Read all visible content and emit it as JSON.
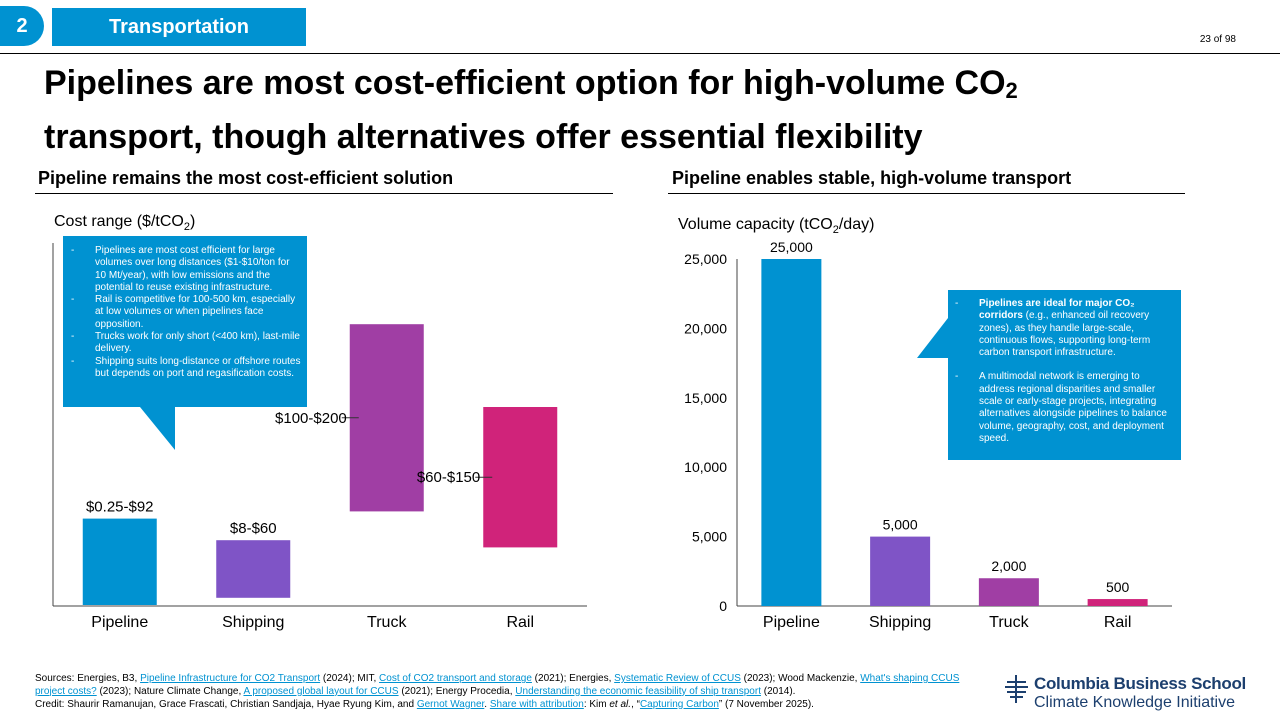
{
  "header": {
    "section_number": "2",
    "section_label": "Transportation",
    "page_indicator": "23 of 98"
  },
  "title": {
    "line1_text": "Pipelines are most cost-efficient option for high-volume CO",
    "line1_sub": "2",
    "line2": "transport, though alternatives offer essential flexibility"
  },
  "left_panel": {
    "heading": "Pipeline remains the most cost-efficient solution",
    "axis_label_main": "Cost range ($/tCO",
    "axis_label_sub": "2",
    "axis_label_end": ")",
    "callout_items": [
      "Pipelines are most cost efficient for large volumes over long distances ($1-$10/ton for 10 Mt/year), with low emissions and the potential to reuse existing infrastructure.",
      "Rail is competitive for 100-500 km, especially at low volumes or when pipelines face opposition.",
      "Trucks work for only short (<400 km), last-mile delivery.",
      "Shipping suits long-distance or offshore routes but depends on port and regasification costs."
    ]
  },
  "right_panel": {
    "heading": "Pipeline enables stable, high-volume transport",
    "axis_label_main": "Volume capacity (tCO",
    "axis_label_sub": "2",
    "axis_label_end": "/day)",
    "callout_item1_bold": "Pipelines are ideal for major CO₂ corridors",
    "callout_item1_rest": " (e.g., enhanced oil recovery zones), as they handle large-scale, continuous flows, supporting long-term carbon transport infrastructure.",
    "callout_item2": "A multimodal network is emerging to address regional disparities and smaller scale or early-stage projects, integrating alternatives alongside pipelines to balance volume, geography, cost, and deployment speed."
  },
  "chart_data": [
    {
      "type": "bar",
      "categories": [
        "Pipeline",
        "Shipping",
        "Truck",
        "Rail"
      ],
      "labels": [
        "$0.25-$92",
        "$8-$60",
        "$100-$200",
        "$60-$150"
      ],
      "relative_ranges": [
        [
          0,
          0.24
        ],
        [
          0.02,
          0.18
        ],
        [
          0.26,
          0.78
        ],
        [
          0.16,
          0.55
        ]
      ],
      "colors": [
        "#0092d1",
        "#7f54c6",
        "#a03ea4",
        "#d0237a"
      ],
      "ylabel": "Cost range ($/tCO2)"
    },
    {
      "type": "bar",
      "categories": [
        "Pipeline",
        "Shipping",
        "Truck",
        "Rail"
      ],
      "values": [
        25000,
        5000,
        2000,
        500
      ],
      "value_labels": [
        "25,000",
        "5,000",
        "2,000",
        "500"
      ],
      "yticks": [
        0,
        5000,
        10000,
        15000,
        20000,
        25000
      ],
      "ytick_labels": [
        "0",
        "5,000",
        "10,000",
        "15,000",
        "20,000",
        "25,000"
      ],
      "ylim": [
        0,
        25000
      ],
      "colors": [
        "#0092d1",
        "#7f54c6",
        "#a03ea4",
        "#d0237a"
      ],
      "ylabel": "Volume capacity (tCO2/day)"
    }
  ],
  "footer": {
    "s1": "Sources: Energies, B3, ",
    "l1": "Pipeline Infrastructure for CO2 Transport",
    "s2": " (2024); MIT, ",
    "l2": "Cost of CO2 transport and storage",
    "s3": " (2021); Energies, ",
    "l3": "Systematic Review of CCUS",
    "s4": " (2023); Wood Mackenzie, ",
    "l4": "What's shaping CCUS project costs?",
    "s5": " (2023); Nature Climate Change, ",
    "l5": "A proposed global layout for CCUS",
    "s6": " (2021); Energy Procedia, ",
    "l6": "Understanding the economic feasibility of ship transport",
    "s7": " (2014).",
    "c1": "Credit: Shaurir Ramanujan, Grace Frascati, Christian Sandjaja, Hyae Ryung Kim, and ",
    "cl1": "Gernot Wagner",
    "c2": ". ",
    "cl2": "Share with attribution",
    "c3": ": Kim ",
    "c_et": "et al.",
    "c4": ", “",
    "cl3": "Capturing Carbon",
    "c5": "” (7 November 2025)."
  },
  "logo": {
    "name": "Columbia Business School",
    "subtitle": "Climate Knowledge Initiative",
    "icon": "columbia-crown-icon"
  }
}
